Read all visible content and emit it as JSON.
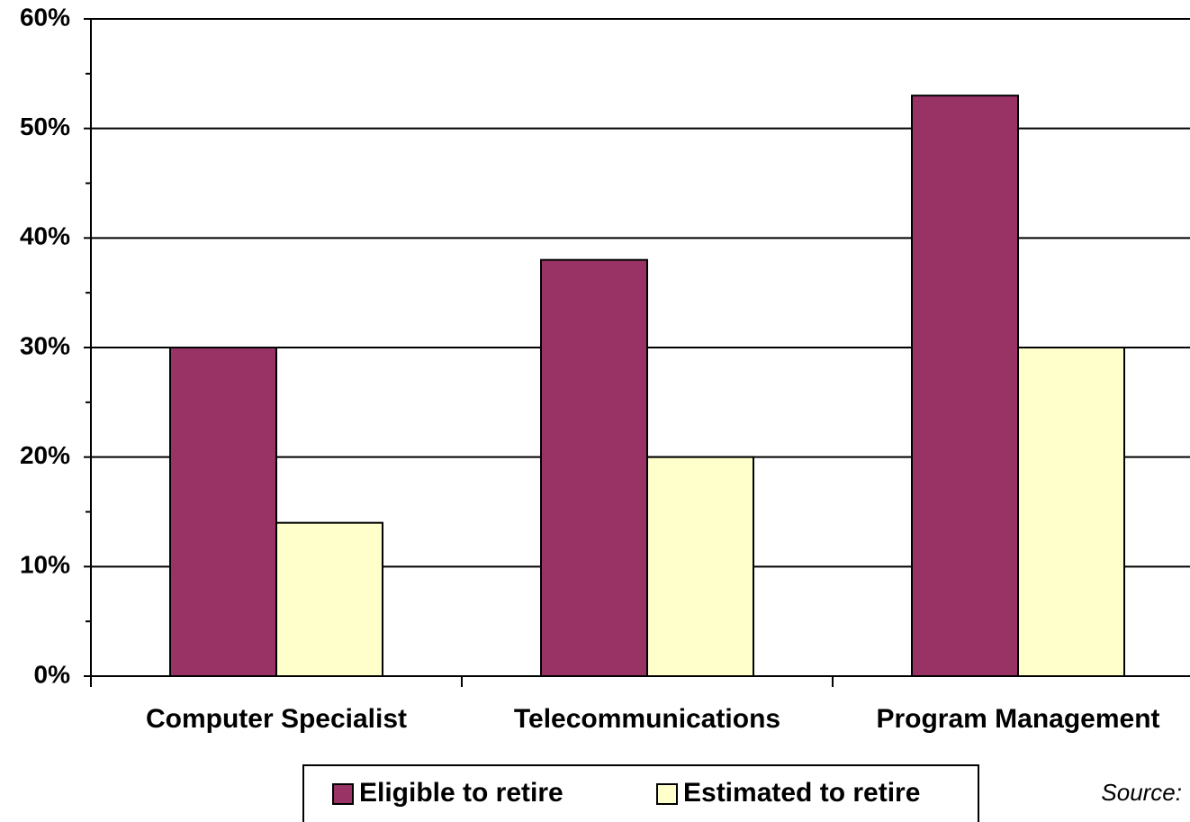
{
  "chart_data": {
    "type": "bar",
    "categories": [
      "Computer Specialist",
      "Telecommunications",
      "Program Management"
    ],
    "series": [
      {
        "name": "Eligible to retire",
        "color": "#993366",
        "values": [
          30,
          38,
          53
        ]
      },
      {
        "name": "Estimated to retire",
        "color": "#ffffcc",
        "values": [
          14,
          20,
          30
        ]
      }
    ],
    "ylim": [
      0,
      60
    ],
    "yticks": [
      {
        "value": 0,
        "label": "0%"
      },
      {
        "value": 10,
        "label": "10%"
      },
      {
        "value": 20,
        "label": "20%"
      },
      {
        "value": 30,
        "label": "30%"
      },
      {
        "value": 40,
        "label": "40%"
      },
      {
        "value": 50,
        "label": "50%"
      },
      {
        "value": 60,
        "label": "60%"
      }
    ],
    "minor_yticks": [
      5,
      15,
      25,
      35,
      45,
      55
    ],
    "grid": true,
    "legend": "bottom",
    "source": "Source:"
  }
}
